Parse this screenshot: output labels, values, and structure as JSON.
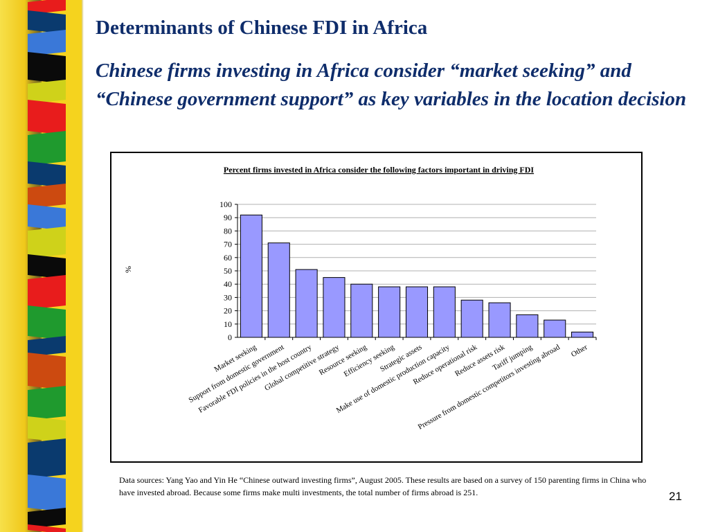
{
  "slide": {
    "title": "Determinants of Chinese FDI in Africa",
    "subtitle": "Chinese firms investing in Africa consider “market seeking” and “Chinese government support” as key variables in the location decision",
    "footnote": "Data sources: Yang Yao and Yin He “Chinese outward investing firms”, August 2005. These results are based on a survey of 150 parenting firms in China who have invested abroad.  Because some firms make multi investments, the total number of firms abroad is 251.",
    "page_number": "21"
  },
  "colors": {
    "title_text": "#0f2d6b",
    "bar_fill": "#9999ff",
    "bar_stroke": "#000000",
    "gridline": "#b0b0b0"
  },
  "chart_data": {
    "type": "bar",
    "title": "Percent firms invested in Africa consider the following factors important in driving FDI",
    "xlabel": "",
    "ylabel": "%",
    "ylim": [
      0,
      100
    ],
    "yticks": [
      0,
      10,
      20,
      30,
      40,
      50,
      60,
      70,
      80,
      90,
      100
    ],
    "grid": true,
    "categories": [
      "Market seeking",
      "Support from domestic government",
      "Favorable FDI policies in the host country",
      "Global competitive strategy",
      "Resource seeking",
      "Efficiency seeking",
      "Strategic assets",
      "Make use of domestic production capacity",
      "Reduce operational risk",
      "Reduce assets risk",
      "Tariff jumping",
      "Pressure from domestic competitors investing abroad",
      "Other"
    ],
    "values": [
      92,
      71,
      51,
      45,
      40,
      38,
      38,
      38,
      28,
      26,
      17,
      13,
      4
    ]
  }
}
